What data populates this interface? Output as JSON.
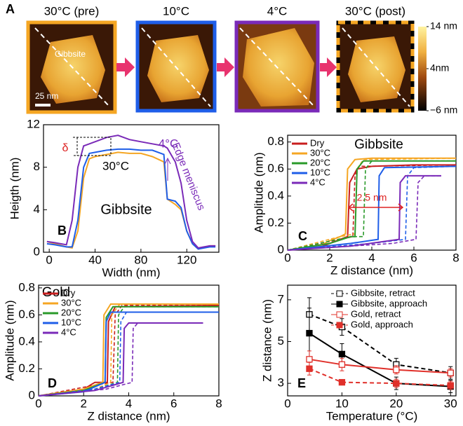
{
  "panel_a": {
    "label": "A",
    "images": [
      {
        "title": "30°C (pre)"
      },
      {
        "title": "10°C"
      },
      {
        "title": "4°C"
      },
      {
        "title": "30°C (post)"
      }
    ],
    "annotation": "Gibbsite",
    "scale_bar": "25 nm",
    "colorbar": {
      "lim": [
        -6,
        14
      ],
      "ticks": [
        {
          "value": 14,
          "label": "14 nm"
        },
        {
          "value": 4,
          "label": "4nm"
        },
        {
          "value": -6,
          "label": "−6 nm"
        }
      ]
    }
  },
  "chart_data": [
    {
      "type": "line",
      "panel": "B",
      "x_label": "Width (nm)",
      "y_label": "Heigth (nm)",
      "xlim": [
        -5,
        148
      ],
      "xticks": [
        0,
        40,
        80,
        120
      ],
      "ylim": [
        0,
        12
      ],
      "yticks": [
        0,
        4,
        8,
        12
      ],
      "x": [
        -2,
        5,
        15,
        20,
        25,
        30,
        35,
        40,
        50,
        60,
        70,
        80,
        90,
        100,
        103,
        110,
        115,
        120,
        125,
        130,
        140,
        145
      ],
      "series": [
        {
          "name": "30°C",
          "color": "#f5a623",
          "values": [
            1.0,
            0.8,
            0.5,
            0.4,
            2.0,
            7.0,
            8.8,
            9.0,
            9.2,
            9.4,
            9.3,
            9.3,
            9.0,
            8.5,
            5.0,
            4.5,
            4.0,
            2.0,
            0.8,
            0.3,
            0.6,
            0.6
          ]
        },
        {
          "color": "#1f5ee8",
          "values": [
            0.8,
            0.7,
            0.5,
            0.5,
            3.0,
            8.0,
            9.3,
            9.4,
            9.6,
            9.7,
            9.7,
            9.6,
            9.6,
            9.2,
            5.0,
            4.8,
            4.2,
            2.0,
            0.8,
            0.3,
            0.5,
            0.5
          ]
        },
        {
          "name": "4°C",
          "color": "#7a2ab8",
          "values": [
            1.0,
            0.9,
            0.7,
            3.0,
            8.0,
            10.0,
            10.2,
            10.4,
            10.8,
            11.0,
            10.6,
            10.4,
            10.2,
            10.0,
            9.8,
            8.5,
            6.5,
            3.0,
            1.0,
            0.4,
            0.6,
            0.6
          ]
        }
      ],
      "annotations": [
        "δ",
        "Edge meniscus",
        "Gibbsite"
      ]
    },
    {
      "type": "line",
      "panel": "C",
      "title": "Gibbsite",
      "x_label": "Z distance (nm)",
      "y_label": "Amplitude (nm)",
      "xlim": [
        0,
        8
      ],
      "xticks": [
        0,
        2,
        4,
        6,
        8
      ],
      "ylim": [
        0,
        0.85
      ],
      "yticks": [
        0,
        0.2,
        0.4,
        0.6,
        0.8
      ],
      "series": [
        {
          "name": "Dry",
          "color": "#c81e1e",
          "x": [
            0,
            1.5,
            2,
            2.5,
            2.85,
            2.95,
            3.3,
            4,
            6,
            8
          ],
          "values": [
            0,
            0.02,
            0.05,
            0.08,
            0.1,
            0.5,
            0.6,
            0.62,
            0.63,
            0.63
          ],
          "dashed_x": [
            0,
            2.5,
            3.1,
            3.2,
            3.4,
            8
          ],
          "dashed_values": [
            0,
            0.08,
            0.1,
            0.55,
            0.62,
            0.63
          ]
        },
        {
          "name": "30°C",
          "color": "#f5a623",
          "x": [
            0,
            1.5,
            2,
            2.5,
            2.75,
            2.85,
            3.2,
            4,
            8
          ],
          "values": [
            0,
            0.03,
            0.07,
            0.1,
            0.12,
            0.6,
            0.67,
            0.68,
            0.68
          ],
          "dashed_x": [
            0,
            2.5,
            3.2,
            3.3,
            3.6,
            8
          ],
          "dashed_values": [
            0,
            0.1,
            0.12,
            0.6,
            0.67,
            0.68
          ]
        },
        {
          "name": "20°C",
          "color": "#2a9a2a",
          "x": [
            0,
            2,
            3,
            3.2,
            3.3,
            3.6,
            8
          ],
          "values": [
            0,
            0.05,
            0.1,
            0.1,
            0.6,
            0.66,
            0.66
          ],
          "dashed_x": [
            0,
            3,
            3.6,
            3.7,
            4,
            8
          ],
          "dashed_values": [
            0,
            0.1,
            0.1,
            0.6,
            0.66,
            0.66
          ]
        },
        {
          "name": "10°C",
          "color": "#1f5ee8",
          "x": [
            0,
            3,
            4.3,
            4.35,
            4.6,
            8
          ],
          "values": [
            0,
            0.05,
            0.08,
            0.55,
            0.61,
            0.62
          ],
          "dashed_x": [
            0,
            4,
            5.6,
            5.7,
            6,
            8
          ],
          "dashed_values": [
            0,
            0.05,
            0.08,
            0.55,
            0.61,
            0.62
          ]
        },
        {
          "name": "4°C",
          "color": "#7a2ab8",
          "x": [
            0,
            3,
            5.3,
            5.35,
            5.6,
            7.3
          ],
          "values": [
            0,
            0.03,
            0.08,
            0.5,
            0.55,
            0.55
          ],
          "dashed_x": [
            0,
            5,
            6.1,
            6.2,
            6.5,
            7.3
          ],
          "dashed_values": [
            0,
            0.05,
            0.08,
            0.5,
            0.55,
            0.55
          ]
        }
      ],
      "annotations": [
        "2.5 nm"
      ]
    },
    {
      "type": "line",
      "panel": "D",
      "title": "Gold",
      "x_label": "Z distance (nm)",
      "y_label": "Amplitude (nm)",
      "xlim": [
        0,
        8
      ],
      "xticks": [
        0,
        2,
        4,
        6,
        8
      ],
      "ylim": [
        0,
        0.82
      ],
      "yticks": [
        0,
        0.2,
        0.4,
        0.6,
        0.8
      ],
      "series": [
        {
          "name": "Dry",
          "color": "#c81e1e",
          "x": [
            0,
            2,
            2.5,
            3.05,
            3.1,
            3.4,
            8
          ],
          "values": [
            0,
            0.05,
            0.1,
            0.1,
            0.55,
            0.66,
            0.67
          ],
          "dashed_x": [
            0,
            2.5,
            3.3,
            3.4,
            3.7,
            8
          ],
          "dashed_values": [
            0,
            0.08,
            0.1,
            0.6,
            0.67,
            0.67
          ]
        },
        {
          "name": "30°C",
          "color": "#f5a623",
          "x": [
            0,
            2,
            2.85,
            2.9,
            3.2,
            8
          ],
          "values": [
            0,
            0.05,
            0.1,
            0.6,
            0.68,
            0.68
          ],
          "dashed_x": [
            0,
            2.5,
            3.2,
            3.25,
            3.6,
            8
          ],
          "dashed_values": [
            0,
            0.05,
            0.1,
            0.6,
            0.68,
            0.68
          ]
        },
        {
          "name": "20°C",
          "color": "#2a9a2a",
          "x": [
            0,
            2,
            2.95,
            3.0,
            3.3,
            8
          ],
          "values": [
            0,
            0.04,
            0.1,
            0.58,
            0.66,
            0.66
          ],
          "dashed_x": [
            0,
            2.5,
            3.5,
            3.55,
            3.8,
            8
          ],
          "dashed_values": [
            0,
            0.05,
            0.1,
            0.6,
            0.66,
            0.66
          ]
        },
        {
          "name": "10°C",
          "color": "#1f5ee8",
          "x": [
            0,
            2,
            2.95,
            3.0,
            3.2,
            8
          ],
          "values": [
            0,
            0.03,
            0.1,
            0.55,
            0.62,
            0.62
          ],
          "dashed_x": [
            0,
            2.5,
            3.6,
            3.65,
            3.9,
            8
          ],
          "dashed_values": [
            0,
            0.05,
            0.1,
            0.55,
            0.62,
            0.62
          ]
        },
        {
          "name": "4°C",
          "color": "#7a2ab8",
          "x": [
            0,
            2.5,
            3.75,
            3.8,
            4.0,
            7.3
          ],
          "values": [
            0,
            0.04,
            0.1,
            0.5,
            0.54,
            0.54
          ],
          "dashed_x": [
            0,
            3,
            4.15,
            4.2,
            4.4,
            7.3
          ],
          "dashed_values": [
            0,
            0.05,
            0.1,
            0.5,
            0.54,
            0.54
          ]
        }
      ]
    },
    {
      "type": "line",
      "panel": "E",
      "x_label": "Temperature (°C)",
      "y_label": "Z distance (nm)",
      "xlim": [
        0,
        31
      ],
      "xticks": [
        0,
        10,
        20,
        30
      ],
      "ylim": [
        2.4,
        7.7
      ],
      "yticks": [
        3,
        5,
        7
      ],
      "legend": "upper right",
      "x": [
        4,
        10,
        20,
        30
      ],
      "series": [
        {
          "name": "Gibbsite, retract",
          "color": "#000000",
          "dashed": true,
          "filled": false,
          "values": [
            6.3,
            5.7,
            3.9,
            3.5
          ],
          "errors": [
            0.8,
            0.4,
            0.3,
            0.3
          ]
        },
        {
          "name": "Gibbsite, approach",
          "color": "#000000",
          "dashed": false,
          "filled": true,
          "values": [
            5.4,
            4.4,
            3.0,
            2.85
          ],
          "errors": [
            1.2,
            0.5,
            0.3,
            0.3
          ]
        },
        {
          "name": "Gold, retract",
          "color": "#e0302a",
          "dashed": false,
          "filled": false,
          "values": [
            4.15,
            3.9,
            3.65,
            3.5
          ],
          "errors": [
            0.4,
            0.3,
            0.2,
            0.2
          ]
        },
        {
          "name": "Gold, approach",
          "color": "#e0302a",
          "dashed": true,
          "filled": true,
          "values": [
            3.7,
            3.05,
            3.0,
            2.9
          ],
          "errors": [
            0.3,
            0.1,
            0.2,
            0.2
          ]
        }
      ]
    }
  ]
}
